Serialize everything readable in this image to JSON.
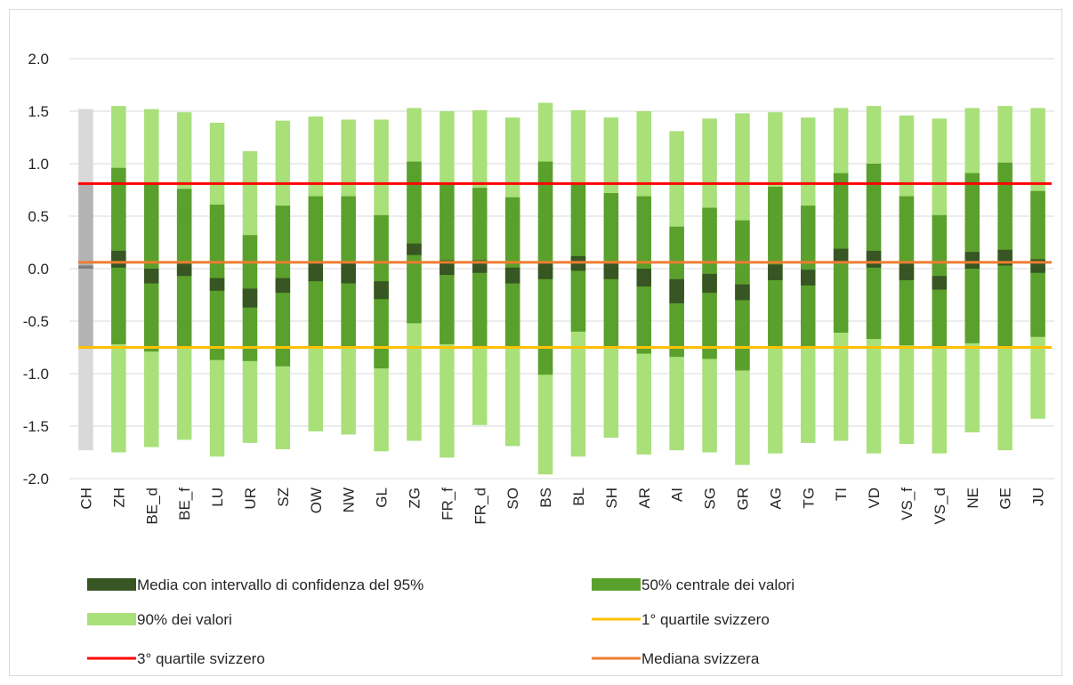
{
  "chart_data": {
    "type": "bar",
    "title": "",
    "xlabel": "",
    "ylabel": "",
    "ylim": [
      -2.0,
      2.0
    ],
    "yticks": [
      "2.0",
      "1.5",
      "1.0",
      "0.5",
      "0.0",
      "-0.5",
      "-1.0",
      "-1.5",
      "-2.0"
    ],
    "categories": [
      "CH",
      "ZH",
      "BE_d",
      "BE_f",
      "LU",
      "UR",
      "SZ",
      "OW",
      "NW",
      "GL",
      "ZG",
      "FR_f",
      "FR_d",
      "SO",
      "BS",
      "BL",
      "SH",
      "AR",
      "AI",
      "SG",
      "GR",
      "AG",
      "TG",
      "TI",
      "VD",
      "VS_f",
      "VS_d",
      "NE",
      "GE",
      "JU"
    ],
    "range90_low": [
      -1.73,
      -1.75,
      -1.7,
      -1.63,
      -1.79,
      -1.66,
      -1.72,
      -1.55,
      -1.58,
      -1.74,
      -1.64,
      -1.8,
      -1.49,
      -1.69,
      -1.96,
      -1.79,
      -1.61,
      -1.77,
      -1.73,
      -1.75,
      -1.87,
      -1.76,
      -1.66,
      -1.64,
      -1.76,
      -1.67,
      -1.76,
      -1.56,
      -1.73,
      -1.43
    ],
    "range90_high": [
      1.52,
      1.55,
      1.52,
      1.49,
      1.39,
      1.12,
      1.41,
      1.45,
      1.42,
      1.42,
      1.53,
      1.5,
      1.51,
      1.44,
      1.58,
      1.51,
      1.44,
      1.5,
      1.31,
      1.43,
      1.48,
      1.49,
      1.44,
      1.53,
      1.55,
      1.46,
      1.43,
      1.53,
      1.55,
      1.53
    ],
    "range50_low": [
      -0.75,
      -0.72,
      -0.79,
      -0.75,
      -0.87,
      -0.88,
      -0.93,
      -0.75,
      -0.75,
      -0.95,
      -0.52,
      -0.72,
      -0.74,
      -0.75,
      -1.01,
      -0.6,
      -0.75,
      -0.81,
      -0.84,
      -0.86,
      -0.97,
      -0.75,
      -0.75,
      -0.61,
      -0.67,
      -0.73,
      -0.75,
      -0.71,
      -0.75,
      -0.65
    ],
    "range50_high": [
      0.81,
      0.96,
      0.81,
      0.76,
      0.61,
      0.32,
      0.6,
      0.69,
      0.69,
      0.51,
      1.02,
      0.81,
      0.77,
      0.68,
      1.02,
      0.81,
      0.72,
      0.69,
      0.4,
      0.58,
      0.46,
      0.78,
      0.6,
      0.91,
      1.0,
      0.69,
      0.51,
      0.91,
      1.01,
      0.74
    ],
    "ci_low": [
      0.0,
      0.01,
      -0.14,
      -0.07,
      -0.21,
      -0.37,
      -0.23,
      -0.12,
      -0.14,
      -0.29,
      0.13,
      -0.06,
      -0.04,
      -0.14,
      -0.1,
      -0.02,
      -0.1,
      -0.17,
      -0.33,
      -0.23,
      -0.3,
      -0.11,
      -0.16,
      0.07,
      0.01,
      -0.11,
      -0.2,
      0.0,
      0.03,
      -0.04
    ],
    "ci_high": [
      0.03,
      0.17,
      0.0,
      0.05,
      -0.09,
      -0.19,
      -0.09,
      0.06,
      0.06,
      -0.12,
      0.24,
      0.08,
      0.08,
      0.01,
      0.06,
      0.12,
      0.05,
      0.0,
      -0.1,
      -0.05,
      -0.15,
      0.04,
      -0.01,
      0.19,
      0.17,
      0.05,
      -0.07,
      0.16,
      0.18,
      0.09
    ],
    "reference_lines": [
      {
        "name": "3° quartile svizzero",
        "value": 0.81,
        "color": "#ff0000"
      },
      {
        "name": "Mediana svizzera",
        "value": 0.06,
        "color": "#ed7d31"
      },
      {
        "name": "1° quartile svizzero",
        "value": -0.75,
        "color": "#ffc000"
      }
    ],
    "legend": [
      {
        "label": "Media con intervallo di confidenza del 95%",
        "kind": "box",
        "color": "#375623"
      },
      {
        "label": "50% centrale dei valori",
        "kind": "box",
        "color": "#5aa02c"
      },
      {
        "label": "90% dei valori",
        "kind": "box",
        "color": "#a9e07a"
      },
      {
        "label": " 1° quartile svizzero",
        "kind": "line",
        "color": "#ffc000"
      },
      {
        "label": "3° quartile svizzero",
        "kind": "line",
        "color": "#ff0000"
      },
      {
        "label": "Mediana svizzera",
        "kind": "line",
        "color": "#ed7d31"
      }
    ],
    "legend_position": "bottom",
    "grid": true,
    "colors": {
      "range90": "#a9e07a",
      "range50": "#5aa02c",
      "ci": "#375623",
      "ch_range90": "#d9d9d9",
      "ch_range50": "#b3b3b3",
      "ch_ci": "#7f7f7f",
      "gridline": "#d9d9d9"
    }
  }
}
